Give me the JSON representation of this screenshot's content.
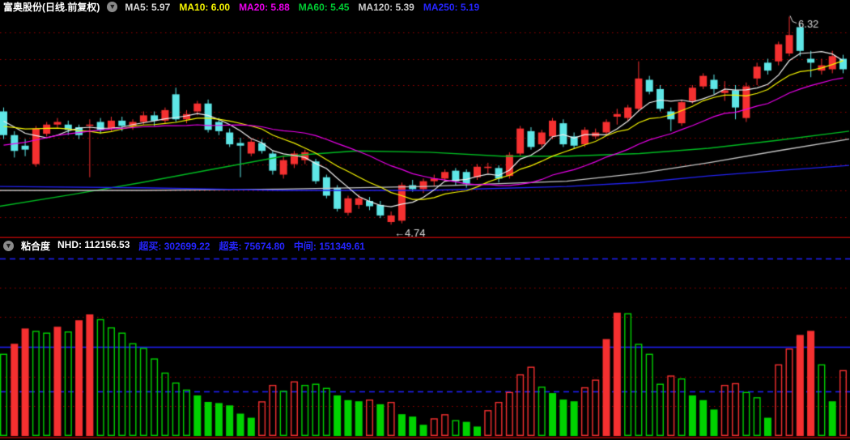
{
  "header": {
    "title": "富奥股份(日线.前复权)",
    "collapse_icon": "chevron-down",
    "ma_items": [
      {
        "label": "MA5: 5.97",
        "color": "#d9d9d9"
      },
      {
        "label": "MA10: 6.00",
        "color": "#f5f500"
      },
      {
        "label": "MA20: 5.88",
        "color": "#ea00ea"
      },
      {
        "label": "MA60: 5.45",
        "color": "#00cc33"
      },
      {
        "label": "MA120: 5.39",
        "color": "#c9c9c9"
      },
      {
        "label": "MA250: 5.19",
        "color": "#2525ff"
      }
    ]
  },
  "indicator_header": {
    "name": "粘合度",
    "collapse_icon": "chevron-down",
    "items": [
      {
        "label": "NHD: 112156.53",
        "color": "#ffffff"
      },
      {
        "label": "超买: 302699.22",
        "color": "#2525ff"
      },
      {
        "label": "超卖: 75674.80",
        "color": "#2525ff"
      },
      {
        "label": "中间: 151349.61",
        "color": "#2525ff"
      }
    ]
  },
  "colors": {
    "background": "#000000",
    "up_candle": "#f53030",
    "down_candle": "#5ee6e6",
    "grid_dotted": "#9b0000",
    "panel_border": "#7c0404",
    "level_blue": "#2020ff",
    "bar_red": "#f53030",
    "bar_green": "#00d200",
    "annotation_text": "#d8d8d8"
  },
  "chart_data": [
    {
      "type": "candlestick",
      "title": "富奥股份 日线 前复权",
      "price_gridlines": [
        6.2,
        6.0,
        5.8,
        5.6,
        5.4,
        5.2,
        5.0,
        4.8
      ],
      "annotations": [
        {
          "text": "6.32",
          "anchor": "highest-high"
        },
        {
          "text": "←4.74",
          "anchor": "lowest-low"
        }
      ],
      "candles": [
        [
          5.6,
          5.63,
          5.39,
          5.42
        ],
        [
          5.42,
          5.45,
          5.25,
          5.3
        ],
        [
          5.34,
          5.39,
          5.26,
          5.31
        ],
        [
          5.2,
          5.49,
          5.18,
          5.47
        ],
        [
          5.43,
          5.52,
          5.41,
          5.5
        ],
        [
          5.5,
          5.55,
          5.47,
          5.52
        ],
        [
          5.5,
          5.53,
          5.42,
          5.46
        ],
        [
          5.48,
          5.5,
          5.39,
          5.42
        ],
        [
          5.49,
          5.54,
          5.1,
          5.5
        ],
        [
          5.52,
          5.55,
          5.43,
          5.46
        ],
        [
          5.47,
          5.56,
          5.45,
          5.53
        ],
        [
          5.53,
          5.56,
          5.45,
          5.49
        ],
        [
          5.49,
          5.54,
          5.46,
          5.52
        ],
        [
          5.52,
          5.6,
          5.5,
          5.57
        ],
        [
          5.57,
          5.6,
          5.49,
          5.53
        ],
        [
          5.53,
          5.63,
          5.51,
          5.61
        ],
        [
          5.73,
          5.78,
          5.52,
          5.54
        ],
        [
          5.54,
          5.61,
          5.51,
          5.58
        ],
        [
          5.6,
          5.68,
          5.57,
          5.66
        ],
        [
          5.66,
          5.69,
          5.44,
          5.46
        ],
        [
          5.52,
          5.55,
          5.42,
          5.45
        ],
        [
          5.44,
          5.47,
          5.33,
          5.35
        ],
        [
          5.36,
          5.4,
          5.1,
          5.34
        ],
        [
          5.28,
          5.39,
          5.26,
          5.37
        ],
        [
          5.36,
          5.39,
          5.28,
          5.3
        ],
        [
          5.28,
          5.3,
          5.12,
          5.15
        ],
        [
          5.12,
          5.26,
          5.09,
          5.23
        ],
        [
          5.2,
          5.3,
          5.17,
          5.28
        ],
        [
          5.23,
          5.31,
          5.2,
          5.29
        ],
        [
          5.22,
          5.24,
          5.05,
          5.07
        ],
        [
          5.1,
          5.12,
          4.94,
          4.96
        ],
        [
          5.02,
          5.04,
          4.84,
          4.86
        ],
        [
          4.83,
          4.96,
          4.81,
          4.94
        ],
        [
          4.89,
          4.97,
          4.86,
          4.94
        ],
        [
          4.92,
          4.95,
          4.85,
          4.88
        ],
        [
          4.89,
          4.92,
          4.79,
          4.81
        ],
        [
          4.76,
          4.84,
          4.74,
          4.81
        ],
        [
          4.77,
          5.06,
          4.75,
          5.04
        ],
        [
          5.04,
          5.08,
          4.99,
          5.01
        ],
        [
          5.01,
          5.09,
          4.98,
          5.07
        ],
        [
          5.07,
          5.12,
          5.03,
          5.09
        ],
        [
          5.09,
          5.16,
          5.07,
          5.14
        ],
        [
          5.15,
          5.17,
          5.04,
          5.07
        ],
        [
          5.14,
          5.16,
          5.02,
          5.05
        ],
        [
          5.1,
          5.2,
          5.08,
          5.18
        ],
        [
          5.17,
          5.21,
          5.13,
          5.18
        ],
        [
          5.17,
          5.19,
          5.06,
          5.09
        ],
        [
          5.11,
          5.29,
          5.09,
          5.27
        ],
        [
          5.28,
          5.49,
          5.26,
          5.47
        ],
        [
          5.45,
          5.48,
          5.31,
          5.33
        ],
        [
          5.35,
          5.46,
          5.33,
          5.44
        ],
        [
          5.41,
          5.55,
          5.39,
          5.53
        ],
        [
          5.51,
          5.54,
          5.33,
          5.35
        ],
        [
          5.41,
          5.44,
          5.32,
          5.34
        ],
        [
          5.35,
          5.48,
          5.33,
          5.46
        ],
        [
          5.41,
          5.47,
          5.39,
          5.44
        ],
        [
          5.44,
          5.54,
          5.42,
          5.52
        ],
        [
          5.56,
          5.62,
          5.5,
          5.58
        ],
        [
          5.55,
          5.65,
          5.53,
          5.63
        ],
        [
          5.62,
          5.98,
          5.6,
          5.85
        ],
        [
          5.84,
          5.87,
          5.73,
          5.75
        ],
        [
          5.77,
          5.8,
          5.6,
          5.62
        ],
        [
          5.6,
          5.63,
          5.45,
          5.54
        ],
        [
          5.51,
          5.69,
          5.49,
          5.67
        ],
        [
          5.68,
          5.8,
          5.66,
          5.78
        ],
        [
          5.79,
          5.89,
          5.77,
          5.87
        ],
        [
          5.84,
          5.88,
          5.73,
          5.77
        ],
        [
          5.74,
          5.83,
          5.68,
          5.76
        ],
        [
          5.76,
          5.8,
          5.54,
          5.63
        ],
        [
          5.55,
          5.82,
          5.52,
          5.79
        ],
        [
          5.85,
          5.97,
          5.8,
          5.94
        ],
        [
          5.97,
          6.0,
          5.88,
          5.91
        ],
        [
          5.98,
          6.13,
          5.95,
          6.11
        ],
        [
          6.04,
          6.32,
          6.02,
          6.18
        ],
        [
          6.24,
          6.26,
          6.02,
          6.06
        ],
        [
          6.0,
          6.06,
          5.86,
          5.97
        ],
        [
          5.91,
          6.0,
          5.88,
          5.95
        ],
        [
          5.92,
          6.06,
          5.89,
          6.02
        ],
        [
          6.0,
          6.03,
          5.89,
          5.92
        ]
      ],
      "ma_seed_closes": [
        5.05,
        5.08,
        5.1,
        5.12,
        5.15,
        5.18,
        5.2,
        5.24,
        5.28,
        5.32,
        5.35,
        5.38,
        5.42,
        5.45,
        5.48,
        5.5,
        5.52,
        5.55,
        5.56,
        5.58
      ],
      "overlays": [
        {
          "name": "MA5",
          "color": "#efefef",
          "window": 5
        },
        {
          "name": "MA10",
          "color": "#f5f500",
          "window": 10
        },
        {
          "name": "MA20",
          "color": "#ea00ea",
          "window": 20
        },
        {
          "name": "MA60",
          "color": "#00bb22",
          "points": [
            [
              0,
              4.88
            ],
            [
              90,
              4.97
            ],
            [
              175,
              5.06
            ],
            [
              262,
              5.16
            ],
            [
              350,
              5.26
            ],
            [
              440,
              5.3
            ],
            [
              530,
              5.29
            ],
            [
              620,
              5.26
            ],
            [
              700,
              5.26
            ],
            [
              790,
              5.28
            ],
            [
              875,
              5.32
            ],
            [
              960,
              5.38
            ],
            [
              1049,
              5.45
            ]
          ]
        },
        {
          "name": "MA120",
          "color": "#c6c6c6",
          "points": [
            [
              0,
              5.0
            ],
            [
              175,
              5.0
            ],
            [
              350,
              5.01
            ],
            [
              525,
              5.03
            ],
            [
              610,
              5.05
            ],
            [
              700,
              5.07
            ],
            [
              790,
              5.13
            ],
            [
              875,
              5.21
            ],
            [
              960,
              5.3
            ],
            [
              1049,
              5.39
            ]
          ]
        },
        {
          "name": "MA250",
          "color": "#2222f0",
          "points": [
            [
              0,
              5.03
            ],
            [
              175,
              5.02
            ],
            [
              350,
              5.0
            ],
            [
              525,
              5.0
            ],
            [
              700,
              5.03
            ],
            [
              790,
              5.06
            ],
            [
              875,
              5.11
            ],
            [
              960,
              5.15
            ],
            [
              1049,
              5.19
            ]
          ]
        }
      ]
    },
    {
      "type": "bar",
      "name": "粘合度",
      "levels": [
        {
          "name": "超买",
          "value": 302699.22,
          "style": "dashed"
        },
        {
          "name": "中间",
          "value": 151349.61,
          "style": "solid"
        },
        {
          "name": "超卖",
          "value": 75674.8,
          "style": "dashed"
        }
      ],
      "value_gridlines": [
        253000,
        202400,
        151800,
        101200,
        50600
      ],
      "last_value": 112156.53,
      "bar_styles": [
        "gh",
        "rf",
        "rf",
        "gh",
        "gh",
        "rf",
        "gh",
        "rf",
        "rf",
        "gh",
        "gh",
        "gh",
        "gh",
        "gh",
        "gh",
        "gh",
        "gh",
        "gh",
        "gf",
        "gf",
        "gf",
        "gf",
        "gf",
        "gf",
        "rh",
        "rh",
        "gh",
        "rh",
        "gh",
        "gh",
        "gh",
        "gf",
        "gf",
        "gf",
        "rh",
        "gf",
        "rh",
        "gf",
        "gf",
        "gf",
        "rh",
        "rh",
        "gh",
        "gf",
        "gf",
        "rh",
        "rh",
        "rh",
        "rh",
        "rh",
        "gh",
        "gf",
        "gf",
        "gf",
        "rh",
        "rh",
        "rf",
        "rf",
        "gh",
        "gh",
        "gh",
        "gh",
        "rh",
        "gh",
        "gf",
        "gf",
        "gf",
        "rh",
        "rh",
        "gh",
        "gh",
        "gf",
        "rh",
        "rh",
        "rf",
        "rf",
        "gh",
        "gf",
        "rh"
      ],
      "bar_values": [
        140000,
        157000,
        183000,
        179000,
        176000,
        186000,
        178000,
        197000,
        207000,
        199000,
        185000,
        176000,
        158000,
        150000,
        132000,
        108000,
        91000,
        79000,
        69000,
        58000,
        56000,
        52000,
        38000,
        31000,
        59000,
        87000,
        77000,
        93000,
        87000,
        89000,
        82000,
        69000,
        61000,
        59000,
        62000,
        54000,
        58000,
        37000,
        33000,
        19000,
        30000,
        37000,
        27000,
        24000,
        16000,
        44000,
        58000,
        75000,
        105000,
        118000,
        84000,
        73000,
        62000,
        59000,
        83000,
        96000,
        165000,
        210000,
        209000,
        157000,
        140000,
        89000,
        103000,
        98000,
        69000,
        61000,
        45000,
        87000,
        90000,
        75000,
        66000,
        31000,
        122000,
        149000,
        172000,
        179000,
        122000,
        59000,
        112156.53
      ]
    }
  ]
}
